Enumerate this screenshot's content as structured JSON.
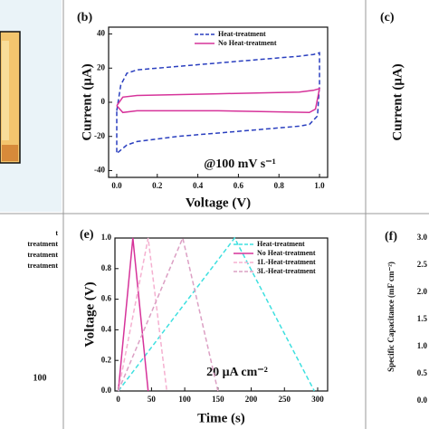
{
  "chart_data": [
    {
      "type": "line",
      "panel": "(b)",
      "xlabel": "Voltage (V)",
      "ylabel": "Current (μA)",
      "annotation": "@100 mV s⁻¹",
      "xlim": [
        -0.04,
        1.04
      ],
      "ylim": [
        -44,
        44
      ],
      "xticks": [
        {
          "value": 0,
          "label": "0.0"
        },
        {
          "value": 0.2,
          "label": "0.2"
        },
        {
          "value": 0.4,
          "label": "0.4"
        },
        {
          "value": 0.6,
          "label": "0.6"
        },
        {
          "value": 0.8,
          "label": "0.8"
        },
        {
          "value": 1,
          "label": "1.0"
        }
      ],
      "yticks": [
        40,
        20,
        0,
        -20,
        -40
      ],
      "legend": "upper right",
      "series": [
        {
          "name": "Heat-treatment",
          "color": "#2a3fbf",
          "dashed": true,
          "x": [
            0,
            0.02,
            0.05,
            0.1,
            0.3,
            0.5,
            0.7,
            0.9,
            0.97,
            1.0,
            1.0,
            0.99,
            0.95,
            0.9,
            0.7,
            0.5,
            0.3,
            0.1,
            0.05,
            0.02,
            0.0,
            0.0
          ],
          "values": [
            -5,
            10,
            17,
            19,
            21,
            23,
            25,
            27,
            28,
            29,
            10,
            -8,
            -13,
            -14,
            -16,
            -18,
            -20,
            -23,
            -25,
            -28,
            -30,
            -5
          ]
        },
        {
          "name": "No Heat-treatment",
          "color": "#d6339a",
          "dashed": false,
          "x": [
            0,
            0.03,
            0.1,
            0.5,
            0.9,
            0.97,
            1.0,
            0.98,
            0.95,
            0.5,
            0.1,
            0.03,
            0.0
          ],
          "values": [
            -2,
            3,
            4,
            5,
            6,
            7,
            8,
            -4,
            -6,
            -5,
            -5,
            -6,
            -2
          ]
        }
      ]
    },
    {
      "type": "line",
      "panel": "(e)",
      "xlabel": "Time (s)",
      "ylabel": "Voltage (V)",
      "annotation": "20 μA cm⁻²",
      "xlim": [
        -5,
        315
      ],
      "ylim": [
        0,
        1
      ],
      "xticks": [
        0,
        50,
        100,
        150,
        200,
        250,
        300
      ],
      "yticks": [
        {
          "value": 0,
          "label": "0.0"
        },
        {
          "value": 0.2,
          "label": "0.2"
        },
        {
          "value": 0.4,
          "label": "0.4"
        },
        {
          "value": 0.6,
          "label": "0.6"
        },
        {
          "value": 0.8,
          "label": "0.8"
        },
        {
          "value": 1,
          "label": "1.0"
        }
      ],
      "legend": "upper right",
      "series": [
        {
          "name": "Heat-treatment",
          "color": "#3ee0e0",
          "dashed": true,
          "x": [
            0,
            175,
            295
          ],
          "values": [
            0,
            1,
            0
          ]
        },
        {
          "name": "No Heat-treatment",
          "color": "#d6339a",
          "dashed": false,
          "x": [
            0,
            22,
            45
          ],
          "values": [
            0,
            1,
            0
          ]
        },
        {
          "name": "1L-Heat-treatment",
          "color": "#f5b0d0",
          "dashed": true,
          "x": [
            0,
            45,
            73
          ],
          "values": [
            0,
            1,
            0
          ]
        },
        {
          "name": "3L-Heat-treatment",
          "color": "#dca0c4",
          "dashed": true,
          "x": [
            0,
            97,
            150
          ],
          "values": [
            0,
            1,
            0
          ]
        }
      ]
    }
  ],
  "fragments": {
    "c": {
      "panel": "(c)",
      "ylabel": "Current (μA)"
    },
    "d": {
      "legend_texts": [
        "t",
        "treatment",
        "treatment",
        "treatment"
      ],
      "tick": "100"
    },
    "f": {
      "panel": "(f)",
      "ylabel": "Specific Capacitance (mF cm⁻²)",
      "yticks": [
        "3.0",
        "2.5",
        "2.0",
        "1.5",
        "1.0",
        "0.5",
        "0.0"
      ]
    }
  }
}
